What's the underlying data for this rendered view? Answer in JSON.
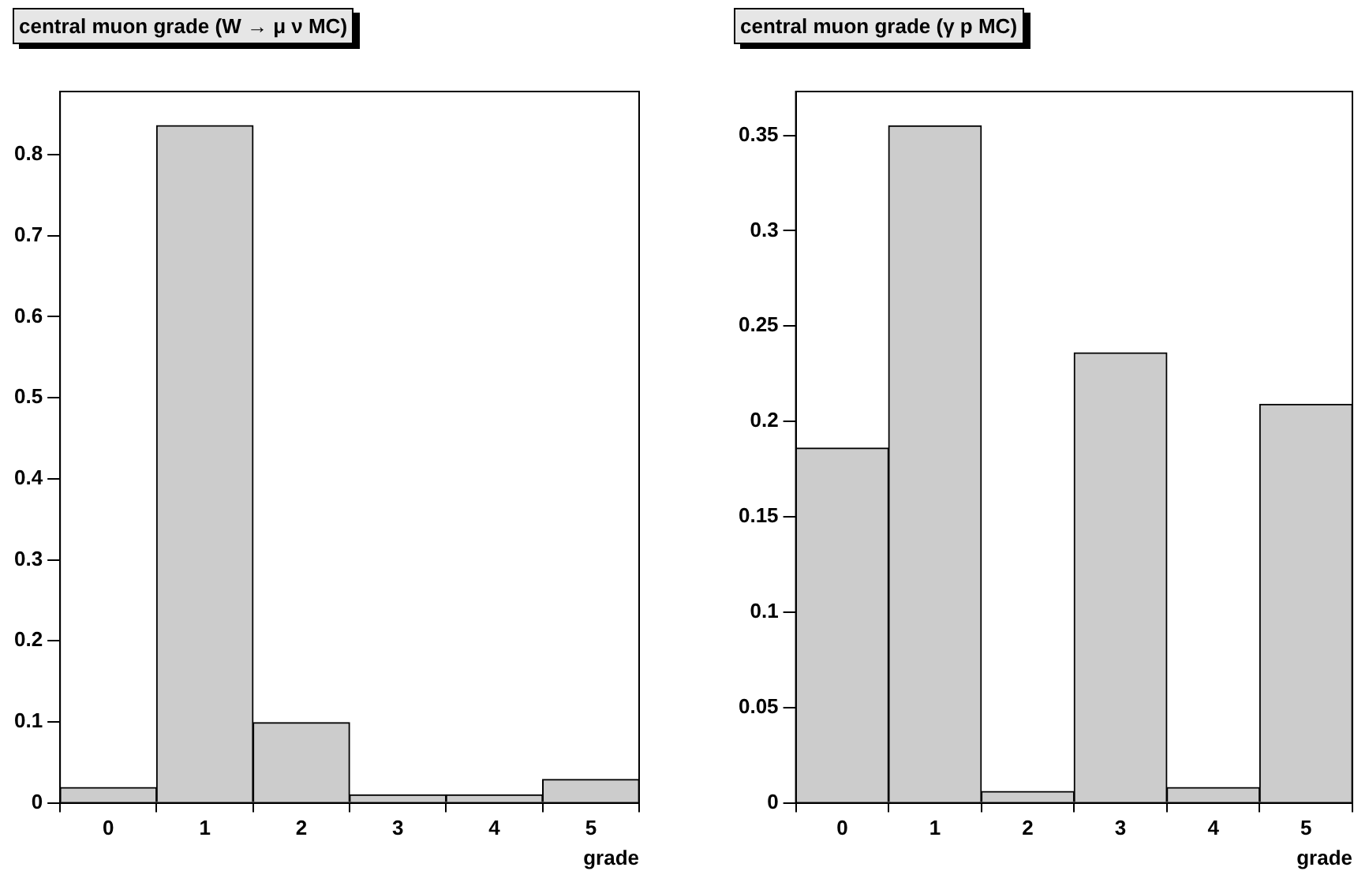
{
  "chart_data": [
    {
      "type": "histogram",
      "title": "central muon grade (W → μ ν MC)",
      "xlabel": "grade",
      "bins": [
        -0.5,
        0.5,
        1.5,
        2.5,
        3.5,
        4.5,
        5.5
      ],
      "values": [
        0.019,
        0.836,
        0.099,
        0.01,
        0.01,
        0.029
      ],
      "color": "#cccccc",
      "xlim": [
        -0.5,
        5.5
      ],
      "xticks": [
        0,
        1,
        2,
        3,
        4,
        5
      ],
      "ylim": [
        0,
        0.878
      ],
      "yticks": [
        0,
        0.1,
        0.2,
        0.3,
        0.4,
        0.5,
        0.6,
        0.7,
        0.8
      ]
    },
    {
      "type": "histogram",
      "title": "central muon grade (γ p MC)",
      "xlabel": "grade",
      "bins": [
        -0.5,
        0.5,
        1.5,
        2.5,
        3.5,
        4.5,
        5.5
      ],
      "values": [
        0.186,
        0.355,
        0.006,
        0.236,
        0.008,
        0.209
      ],
      "color": "#cccccc",
      "xlim": [
        -0.5,
        5.5
      ],
      "xticks": [
        0,
        1,
        2,
        3,
        4,
        5
      ],
      "ylim": [
        0,
        0.373
      ],
      "yticks": [
        0,
        0.05,
        0.1,
        0.15,
        0.2,
        0.25,
        0.3,
        0.35
      ]
    }
  ]
}
